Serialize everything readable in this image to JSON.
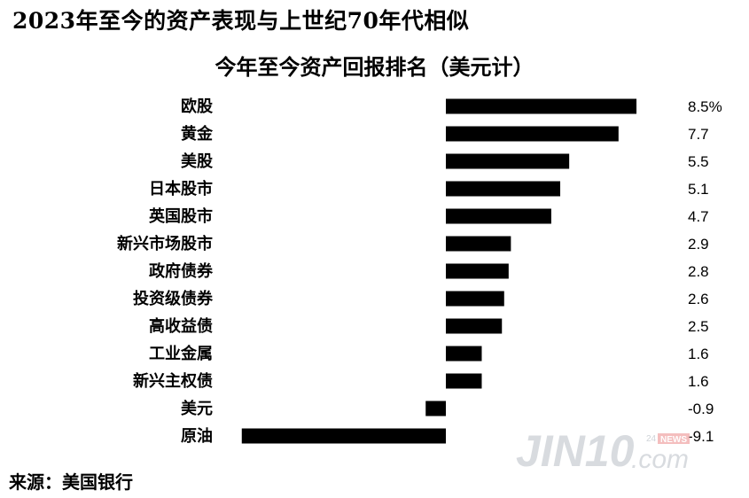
{
  "header": {
    "title": "2023年至今的资产表现与上世纪70年代相似",
    "subtitle": "今年至今资产回报排名（美元计）"
  },
  "footer": {
    "source": "来源：美国银行"
  },
  "logo": {
    "main": "JIN10",
    "suffix": ".com",
    "badge_num": "24",
    "badge_text": "NEWS"
  },
  "chart_data": {
    "type": "bar",
    "orientation": "horizontal",
    "title": "今年至今资产回报排名（美元计）",
    "categories": [
      "欧股",
      "黄金",
      "美股",
      "日本股市",
      "英国股市",
      "新兴市场股市",
      "政府债券",
      "投资级债券",
      "高收益债",
      "工业金属",
      "新兴主权债",
      "美元",
      "原油"
    ],
    "values": [
      8.5,
      7.7,
      5.5,
      5.1,
      4.7,
      2.9,
      2.8,
      2.6,
      2.5,
      1.6,
      1.6,
      -0.9,
      -9.1
    ],
    "value_labels": [
      "8.5%",
      "7.7",
      "5.5",
      "5.1",
      "4.7",
      "2.9",
      "2.8",
      "2.6",
      "2.5",
      "1.6",
      "1.6",
      "-0.9",
      "-9.1"
    ],
    "unit": "%",
    "bar_color": "#000000",
    "xlim": [
      -9.1,
      8.5
    ],
    "grid": false,
    "legend": "none"
  }
}
